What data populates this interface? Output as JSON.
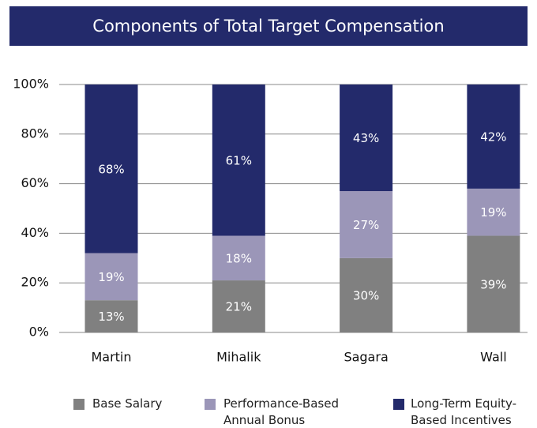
{
  "chart_data": {
    "type": "stacked_bar",
    "title": "Components of Total Target Compensation",
    "categories": [
      "Martin",
      "Mihalik",
      "Sagara",
      "Wall"
    ],
    "series": [
      {
        "name": "Base Salary",
        "color": "#808080",
        "values": [
          13,
          21,
          30,
          39
        ],
        "value_labels": [
          "13%",
          "21%",
          "30%",
          "39%"
        ]
      },
      {
        "name": "Performance-Based Annual Bonus",
        "color": "#9b96b8",
        "values": [
          19,
          18,
          27,
          19
        ],
        "value_labels": [
          "19%",
          "18%",
          "27%",
          "19%"
        ]
      },
      {
        "name": "Long-Term Equity-Based Incentives",
        "color": "#232a6b",
        "values": [
          68,
          61,
          43,
          42
        ],
        "value_labels": [
          "68%",
          "61%",
          "43%",
          "42%"
        ]
      }
    ],
    "ylim": [
      0,
      100
    ],
    "yticks": [
      {
        "value": 0,
        "label": "0%"
      },
      {
        "value": 20,
        "label": "20%"
      },
      {
        "value": 40,
        "label": "40%"
      },
      {
        "value": 60,
        "label": "60%"
      },
      {
        "value": 80,
        "label": "80%"
      },
      {
        "value": 100,
        "label": "100%"
      }
    ],
    "grid": true,
    "legend": "bottom"
  }
}
